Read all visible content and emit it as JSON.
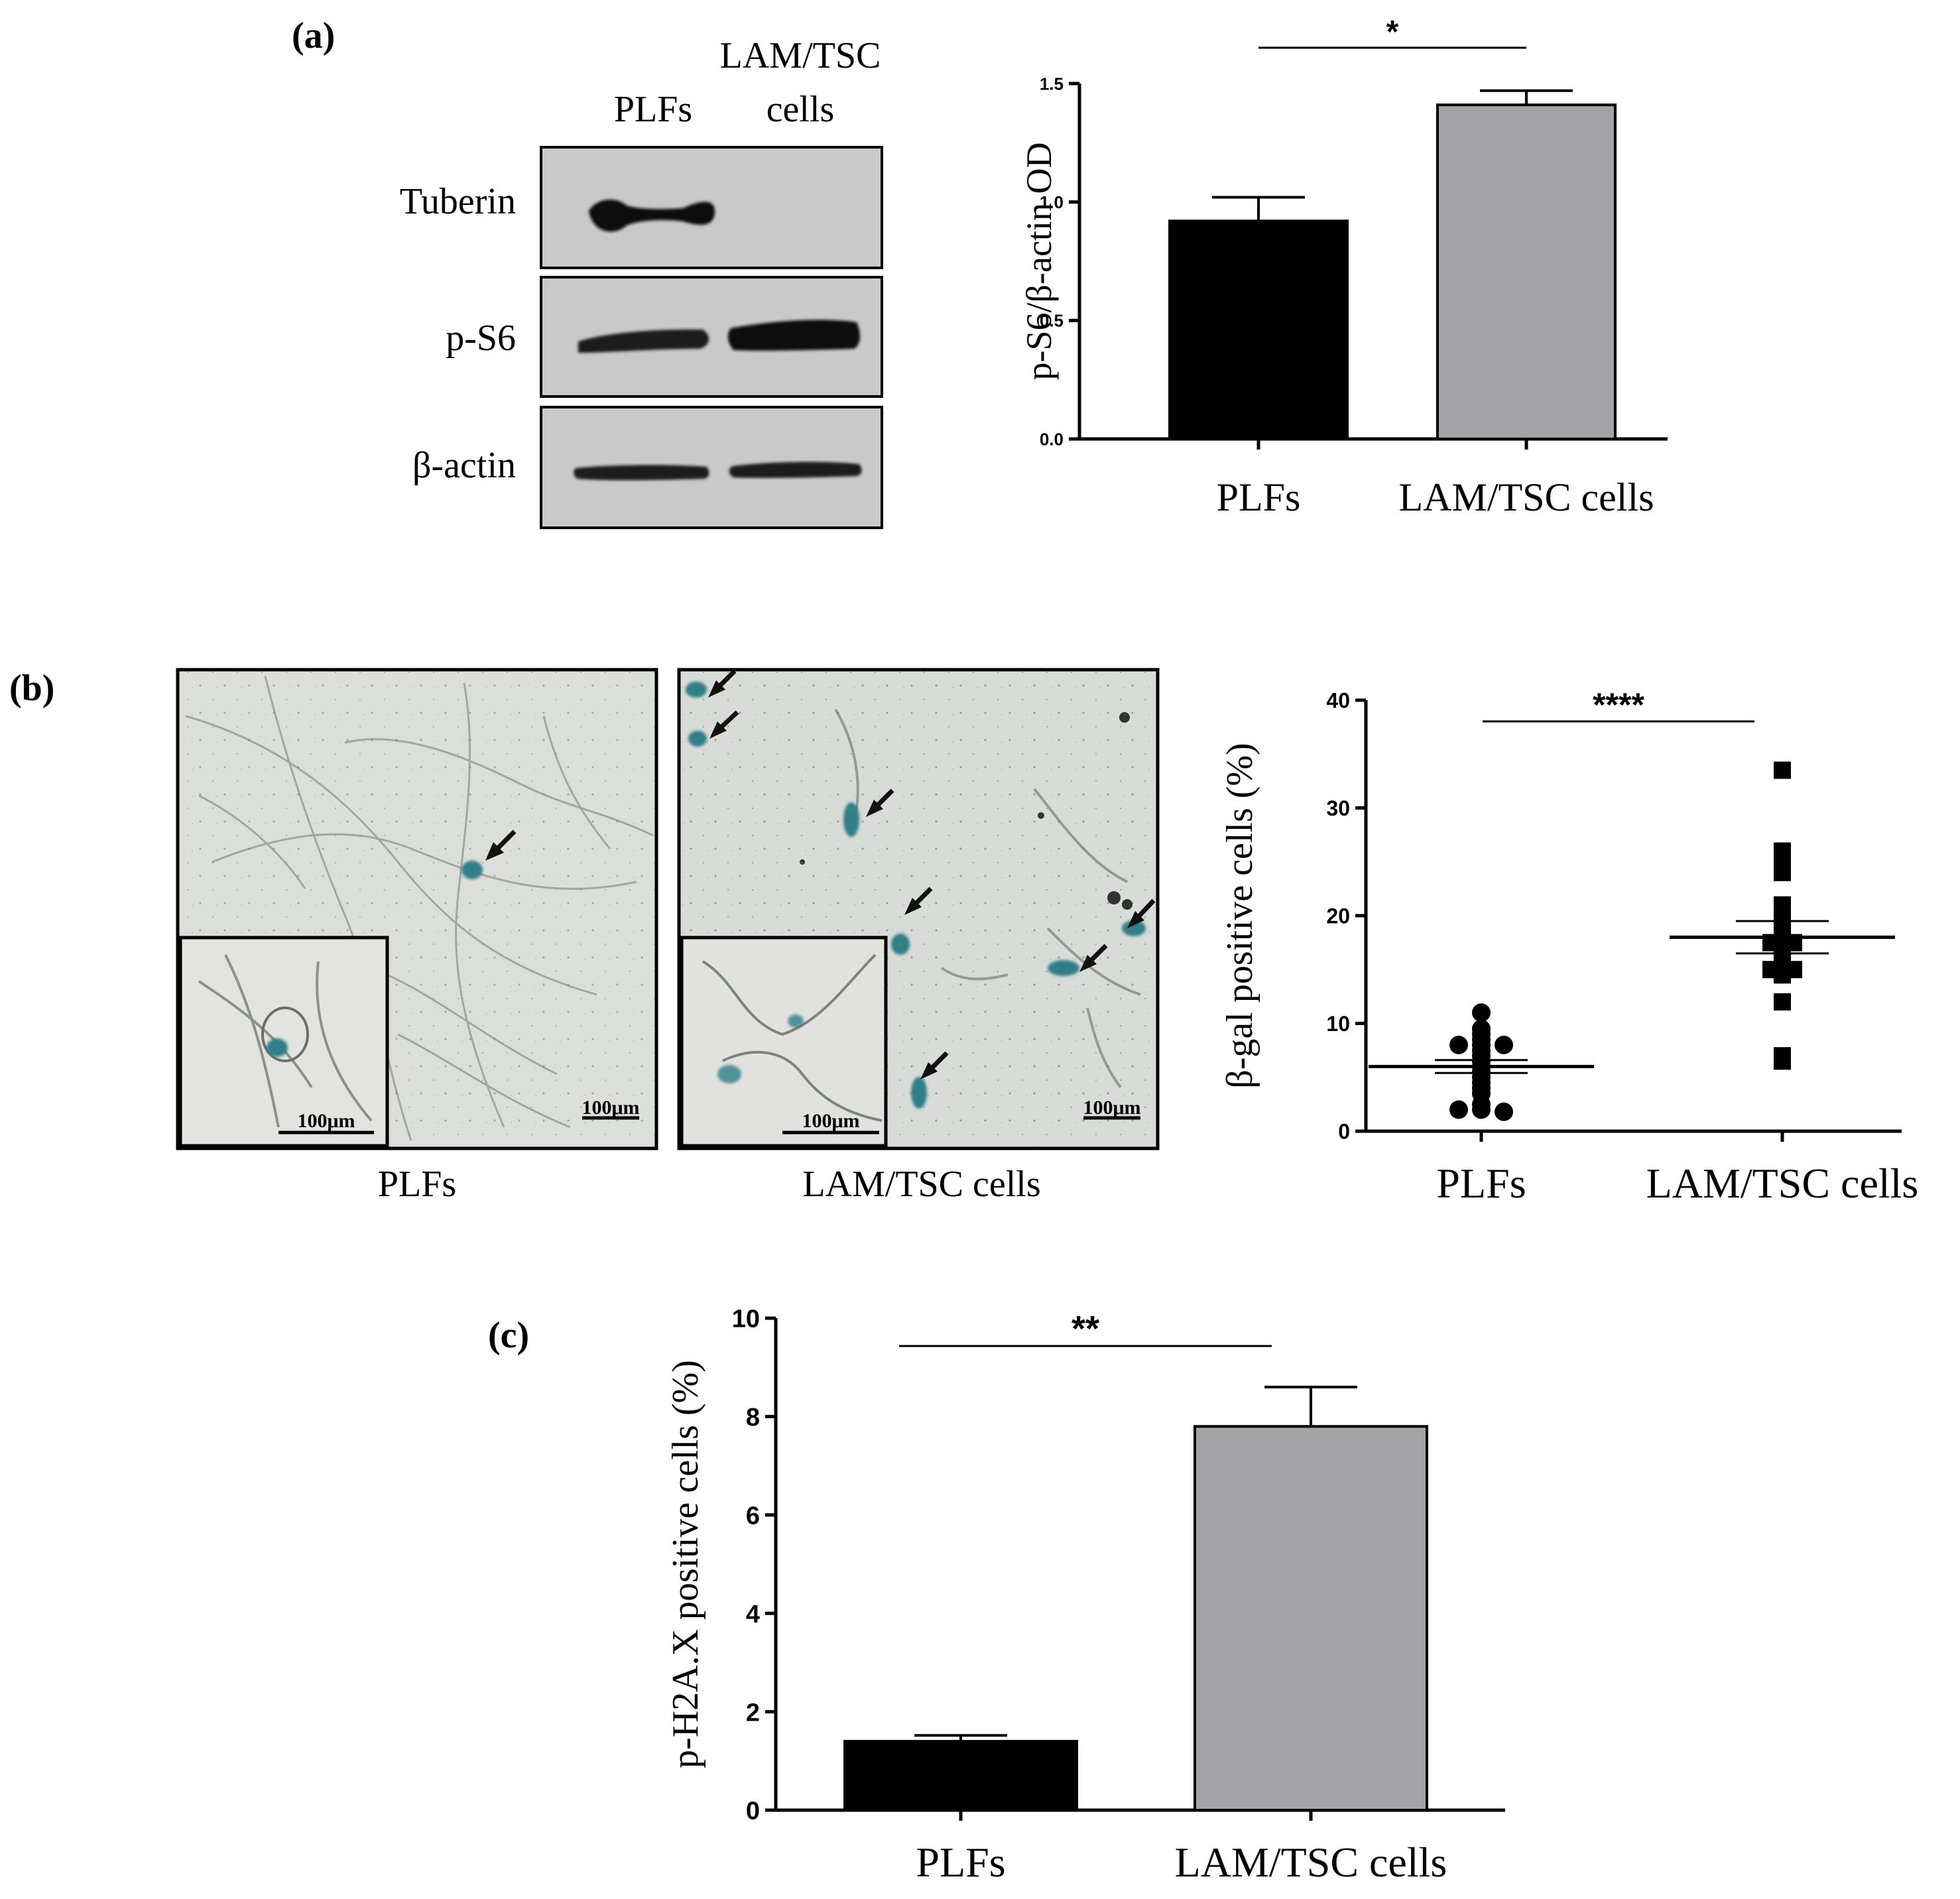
{
  "panel_labels": {
    "a": "(a)",
    "b": "(b)",
    "c": "(c)"
  },
  "western_blot": {
    "lanes": [
      "PLFs",
      "LAM/TSC",
      "cells"
    ],
    "rows": [
      "Tuberin",
      "p-S6",
      "β-actin"
    ],
    "tuberin_band": [
      1.0,
      0.0
    ],
    "ps6_band": [
      0.6,
      1.0
    ],
    "actin_band": [
      0.9,
      0.85
    ]
  },
  "micrographs": {
    "captions": [
      "PLFs",
      "LAM/TSC cells"
    ],
    "scale_bar": "100μm",
    "inset_scale_bar": "100μm",
    "colors": {
      "background": "#d9dcd8",
      "stain": "#2f7f88",
      "arrow": "#111111"
    }
  },
  "chart_data": [
    {
      "type": "bar",
      "panel": "a",
      "categories": [
        "PLFs",
        "LAM/TSC cells"
      ],
      "values": [
        0.92,
        1.41
      ],
      "errors": [
        0.1,
        0.06
      ],
      "ylabel": "p-S6/β-actin OD",
      "ylim": [
        0,
        1.5
      ],
      "yticks": [
        "0.0",
        "0.5",
        "1.0",
        "1.5"
      ],
      "significance": "*",
      "colors": [
        "#000000",
        "#a3a3a8"
      ]
    },
    {
      "type": "scatter",
      "panel": "b",
      "categories": [
        "PLFs",
        "LAM/TSC cells"
      ],
      "series": [
        {
          "values": [
            11,
            9.5,
            9,
            8.5,
            8,
            8,
            8,
            7.5,
            7,
            6.5,
            6,
            5.5,
            5,
            4.5,
            4,
            3.5,
            2.5,
            2,
            2,
            1.8
          ],
          "mean": 6.0,
          "sem": 0.6
        },
        {
          "values": [
            33.5,
            26,
            25,
            24,
            21,
            20.5,
            19,
            18,
            17.5,
            17.5,
            17,
            16.5,
            16,
            15,
            15,
            14.5,
            12,
            7,
            6.5
          ],
          "mean": 18.0,
          "sem": 1.5
        }
      ],
      "ylabel": "β-gal positive cells (%)",
      "ylim": [
        0,
        40
      ],
      "yticks": [
        "0",
        "10",
        "20",
        "30",
        "40"
      ],
      "significance": "****",
      "markers": [
        "circle",
        "square"
      ]
    },
    {
      "type": "bar",
      "panel": "c",
      "categories": [
        "PLFs",
        "LAM/TSC cells"
      ],
      "values": [
        1.4,
        7.8
      ],
      "errors": [
        0.12,
        0.8
      ],
      "ylabel": "p-H2A.X positive cells (%)",
      "ylim": [
        0,
        10
      ],
      "yticks": [
        "0",
        "2",
        "4",
        "6",
        "8",
        "10"
      ],
      "significance": "**",
      "colors": [
        "#000000",
        "#a3a3a8"
      ]
    }
  ]
}
